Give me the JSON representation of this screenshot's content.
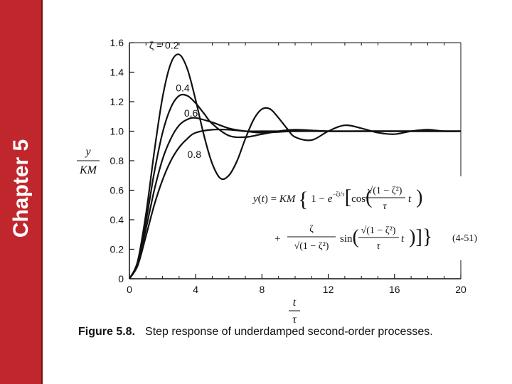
{
  "slide": {
    "side_label": "Chapter 5",
    "sidebar_color": "#c0272d"
  },
  "caption": {
    "number": "Figure 5.8.",
    "text": "Step response of underdamped second-order processes."
  },
  "equation": {
    "tag": "(4-51)"
  },
  "chart_data": {
    "type": "line",
    "title": "",
    "ylabel_num": "y",
    "ylabel_den": "KM",
    "xlabel_num": "t",
    "xlabel_den": "τ",
    "xlim": [
      0,
      20
    ],
    "ylim": [
      0,
      1.6
    ],
    "xticks": [
      "0",
      "4",
      "8",
      "12",
      "16",
      "20"
    ],
    "yticks": [
      "0",
      "0.2",
      "0.4",
      "0.6",
      "0.8",
      "1.0",
      "1.2",
      "1.4",
      "1.6"
    ],
    "grid": false,
    "series": [
      {
        "name": "ζ = 0.2",
        "zeta": 0.2,
        "x": [
          0,
          0.5,
          1,
          1.5,
          2,
          2.5,
          3,
          3.5,
          4,
          4.5,
          5,
          5.5,
          6,
          6.5,
          7,
          7.5,
          8,
          8.5,
          9,
          9.5,
          10,
          11,
          12,
          13,
          14,
          15,
          16,
          17,
          18,
          19,
          20
        ],
        "y": [
          0,
          0.12,
          0.44,
          0.86,
          1.23,
          1.46,
          1.52,
          1.42,
          1.21,
          0.97,
          0.78,
          0.68,
          0.7,
          0.8,
          0.95,
          1.08,
          1.15,
          1.15,
          1.09,
          1.02,
          0.96,
          0.94,
          1.0,
          1.04,
          1.02,
          0.99,
          0.98,
          1.0,
          1.01,
          1.0,
          1.0
        ]
      },
      {
        "name": "0.4",
        "zeta": 0.4,
        "x": [
          0,
          0.5,
          1,
          1.5,
          2,
          2.5,
          3,
          3.5,
          4,
          4.5,
          5,
          6,
          7,
          8,
          9,
          10,
          12,
          14,
          16,
          18,
          20
        ],
        "y": [
          0,
          0.11,
          0.39,
          0.72,
          0.99,
          1.16,
          1.24,
          1.24,
          1.19,
          1.12,
          1.05,
          0.97,
          0.96,
          0.98,
          1.0,
          1.01,
          1.0,
          1.0,
          1.0,
          1.0,
          1.0
        ]
      },
      {
        "name": "0.6",
        "zeta": 0.6,
        "x": [
          0,
          0.5,
          1,
          1.5,
          2,
          2.5,
          3,
          3.5,
          4,
          5,
          6,
          7,
          8,
          10,
          12,
          14,
          16,
          18,
          20
        ],
        "y": [
          0,
          0.1,
          0.34,
          0.6,
          0.81,
          0.95,
          1.04,
          1.08,
          1.09,
          1.06,
          1.02,
          1.0,
          0.99,
          1.0,
          1.0,
          1.0,
          1.0,
          1.0,
          1.0
        ]
      },
      {
        "name": "0.8",
        "zeta": 0.8,
        "x": [
          0,
          0.5,
          1,
          1.5,
          2,
          2.5,
          3,
          3.5,
          4,
          5,
          6,
          7,
          8,
          10,
          12,
          14,
          16,
          18,
          20
        ],
        "y": [
          0,
          0.09,
          0.29,
          0.5,
          0.67,
          0.8,
          0.89,
          0.95,
          0.99,
          1.01,
          1.01,
          1.0,
          1.0,
          1.0,
          1.0,
          1.0,
          1.0,
          1.0,
          1.0
        ]
      }
    ]
  }
}
